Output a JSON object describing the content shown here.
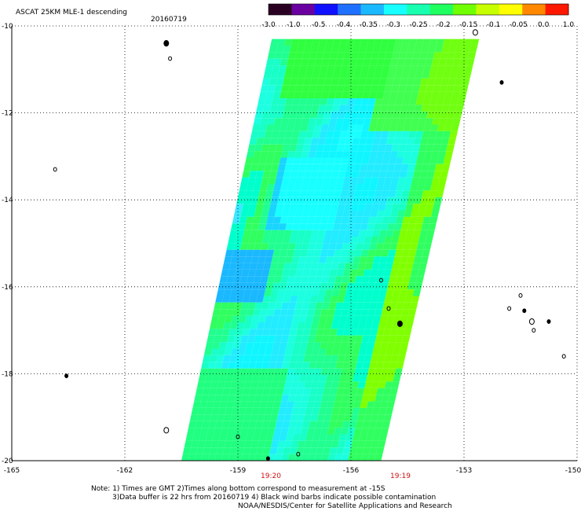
{
  "title": "ASCAT 25KM MLE-1 descending",
  "date": "20160719",
  "colorbar": {
    "ticks": [
      "-3.0",
      "-1.0",
      "-0.5",
      "-0.4",
      "-0.35",
      "-0.3",
      "-0.25",
      "-0.2",
      "-0.15",
      "-0.1",
      "-0.05",
      "0.0",
      "1.0"
    ],
    "colors": [
      "#2a0022",
      "#6a00a0",
      "#1010ff",
      "#2070ff",
      "#1ab8ff",
      "#18ffff",
      "#18ffb0",
      "#20ff60",
      "#70ff00",
      "#c8ff00",
      "#ffff00",
      "#ff8800",
      "#ff1800"
    ]
  },
  "axes": {
    "x_ticks": [
      "-165",
      "-162",
      "-159",
      "-156",
      "-153",
      "-150"
    ],
    "y_ticks": [
      "-10",
      "-12",
      "-14",
      "-16",
      "-18",
      "-20"
    ],
    "lon_range": [
      -165,
      -150
    ],
    "lat_range": [
      -20,
      -10
    ]
  },
  "times": [
    "19:20",
    "19:19"
  ],
  "notes": {
    "line1": "Note: 1) Times are GMT 2)Times along bottom correspond to measurement at -15S",
    "line2": "3)Data buffer is 22 hrs from 20160719 4) Black wind barbs indicate possible contamination",
    "line3": "NOAA/NESDIS/Center for Satellite Applications and Research"
  },
  "swath": {
    "corners_lonlat": [
      [
        -158.1,
        -10.3
      ],
      [
        -152.6,
        -10.3
      ],
      [
        -155.2,
        -20.0
      ],
      [
        -160.5,
        -20.0
      ]
    ]
  },
  "islands_lonlat": [
    [
      -160.9,
      -10.4
    ],
    [
      -160.8,
      -10.75
    ],
    [
      -163.85,
      -13.3
    ],
    [
      -163.55,
      -18.05
    ],
    [
      -160.9,
      -19.3
    ],
    [
      -159.0,
      -19.45
    ],
    [
      -158.2,
      -19.95
    ],
    [
      -157.4,
      -19.85
    ],
    [
      -152.7,
      -10.15
    ],
    [
      -152.0,
      -11.3
    ],
    [
      -155.2,
      -15.85
    ],
    [
      -155.0,
      -16.5
    ],
    [
      -154.7,
      -16.85
    ],
    [
      -151.8,
      -16.5
    ],
    [
      -151.5,
      -16.2
    ],
    [
      -151.4,
      -16.55
    ],
    [
      -151.2,
      -16.8
    ],
    [
      -151.15,
      -17.0
    ],
    [
      -150.75,
      -16.8
    ],
    [
      -150.35,
      -17.6
    ]
  ]
}
